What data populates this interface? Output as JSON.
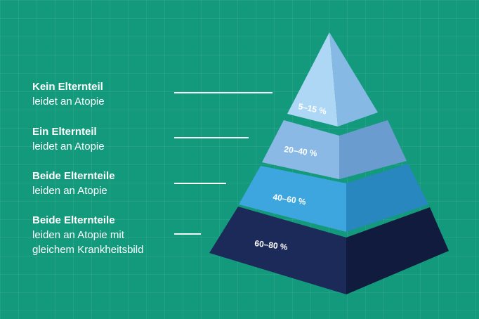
{
  "tiers": [
    {
      "title": "Kein Elternteil",
      "lines": [
        "leidet an Atopie"
      ],
      "percent": "5–15 %"
    },
    {
      "title": "Ein Elternteil",
      "lines": [
        "leidet an Atopie"
      ],
      "percent": "20–40 %"
    },
    {
      "title": "Beide Elternteile",
      "lines": [
        "leiden an Atopie"
      ],
      "percent": "40–60 %"
    },
    {
      "title": "Beide Elternteile",
      "lines": [
        "leiden an Atopie mit",
        "gleichem Krankheitsbild"
      ],
      "percent": "60–80 %"
    }
  ],
  "colors": {
    "background": "#139a7c",
    "tier1": "#a7d2f3",
    "tier2": "#84b4e3",
    "tier3": "#3aa3db",
    "tier4": "#17244f"
  }
}
